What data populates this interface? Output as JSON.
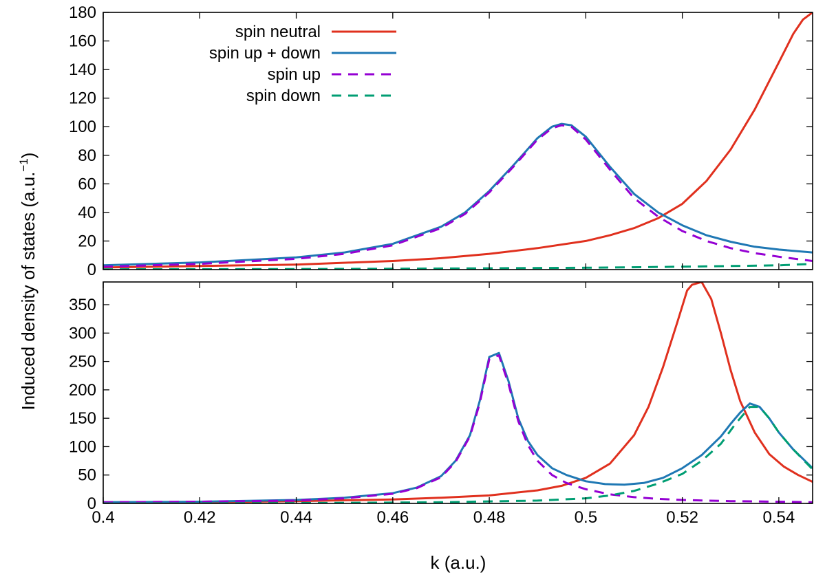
{
  "chart_data": {
    "type": "line",
    "xlabel": "k (a.u.)",
    "ylabel": "Induced density of states (a.u.",
    "ylabel_exp": "−1",
    "ylabel_close": ")",
    "xlim": [
      0.4,
      0.547
    ],
    "xticks": [
      "0.4",
      "0.42",
      "0.44",
      "0.46",
      "0.48",
      "0.5",
      "0.52",
      "0.54"
    ],
    "grid": false,
    "legend_position": "top-left",
    "legend": [
      {
        "label": "spin neutral",
        "color": "#e0301e",
        "dash": "solid"
      },
      {
        "label": "spin up + down",
        "color": "#1f78b4",
        "dash": "solid"
      },
      {
        "label": "spin up",
        "color": "#9400d3",
        "dash": "dashed"
      },
      {
        "label": "spin down",
        "color": "#009e73",
        "dash": "dashed"
      }
    ],
    "panels": [
      {
        "name": "top",
        "ylim": [
          0,
          180
        ],
        "yticks": [
          "0",
          "20",
          "40",
          "60",
          "80",
          "100",
          "120",
          "140",
          "160",
          "180"
        ],
        "series": [
          {
            "name": "spin neutral",
            "color": "#e0301e",
            "dash": "solid",
            "x": [
              0.4,
              0.42,
              0.44,
              0.46,
              0.47,
              0.48,
              0.49,
              0.5,
              0.505,
              0.51,
              0.515,
              0.52,
              0.525,
              0.53,
              0.535,
              0.54,
              0.543,
              0.545,
              0.547
            ],
            "y": [
              1.5,
              2.5,
              3.5,
              6,
              8,
              11,
              15,
              20,
              24,
              29,
              36,
              46,
              62,
              84,
              112,
              145,
              165,
              175,
              180
            ]
          },
          {
            "name": "spin up + down",
            "color": "#1f78b4",
            "dash": "solid",
            "x": [
              0.4,
              0.42,
              0.44,
              0.45,
              0.46,
              0.47,
              0.475,
              0.48,
              0.485,
              0.49,
              0.493,
              0.495,
              0.497,
              0.5,
              0.505,
              0.51,
              0.515,
              0.52,
              0.525,
              0.53,
              0.535,
              0.54,
              0.547
            ],
            "y": [
              3,
              5,
              8.5,
              12,
              18,
              30,
              40,
              55,
              73,
              92,
              100,
              102,
              101,
              93,
              72,
              53,
              40,
              31,
              24,
              19.5,
              16,
              14,
              12
            ]
          },
          {
            "name": "spin up",
            "color": "#9400d3",
            "dash": "dashed",
            "x": [
              0.4,
              0.42,
              0.44,
              0.45,
              0.46,
              0.47,
              0.475,
              0.48,
              0.485,
              0.49,
              0.493,
              0.495,
              0.497,
              0.5,
              0.505,
              0.51,
              0.515,
              0.52,
              0.525,
              0.53,
              0.535,
              0.54,
              0.547
            ],
            "y": [
              2,
              4,
              7.5,
              11,
              17,
              29,
              39,
              54,
              72,
              91,
              99,
              101,
              100,
              91,
              70,
              50,
              37,
              27,
              20,
              15,
              11.5,
              9,
              6
            ]
          },
          {
            "name": "spin down",
            "color": "#009e73",
            "dash": "dashed",
            "x": [
              0.4,
              0.42,
              0.44,
              0.46,
              0.48,
              0.5,
              0.52,
              0.54,
              0.547
            ],
            "y": [
              0.2,
              0.3,
              0.4,
              0.6,
              0.9,
              1.3,
              2,
              3,
              4
            ]
          }
        ]
      },
      {
        "name": "bottom",
        "ylim": [
          0,
          390
        ],
        "yticks": [
          "0",
          "50",
          "100",
          "150",
          "200",
          "250",
          "300",
          "350"
        ],
        "series": [
          {
            "name": "spin neutral",
            "color": "#e0301e",
            "dash": "solid",
            "x": [
              0.4,
              0.42,
              0.44,
              0.46,
              0.47,
              0.48,
              0.49,
              0.495,
              0.5,
              0.505,
              0.51,
              0.513,
              0.516,
              0.519,
              0.521,
              0.522,
              0.524,
              0.526,
              0.528,
              0.53,
              0.532,
              0.535,
              0.538,
              0.541,
              0.544,
              0.547
            ],
            "y": [
              1,
              2,
              4,
              7,
              10,
              14,
              23,
              31,
              45,
              70,
              120,
              170,
              240,
              320,
              375,
              385,
              390,
              360,
              300,
              235,
              180,
              125,
              87,
              65,
              50,
              38
            ]
          },
          {
            "name": "spin up + down",
            "color": "#1f78b4",
            "dash": "solid",
            "x": [
              0.4,
              0.42,
              0.44,
              0.45,
              0.46,
              0.465,
              0.47,
              0.473,
              0.476,
              0.478,
              0.48,
              0.482,
              0.484,
              0.486,
              0.488,
              0.49,
              0.493,
              0.496,
              0.5,
              0.504,
              0.508,
              0.512,
              0.516,
              0.52,
              0.524,
              0.528,
              0.53,
              0.532,
              0.534,
              0.536,
              0.538,
              0.54,
              0.543,
              0.547
            ],
            "y": [
              2,
              3,
              6,
              10,
              18,
              28,
              48,
              75,
              120,
              180,
              258,
              265,
              215,
              150,
              110,
              85,
              62,
              50,
              39,
              34,
              33,
              36,
              45,
              62,
              85,
              118,
              140,
              160,
              176,
              170,
              150,
              125,
              95,
              62
            ]
          },
          {
            "name": "spin up",
            "color": "#9400d3",
            "dash": "dashed",
            "x": [
              0.4,
              0.42,
              0.44,
              0.45,
              0.46,
              0.465,
              0.47,
              0.473,
              0.476,
              0.478,
              0.48,
              0.482,
              0.484,
              0.486,
              0.488,
              0.49,
              0.493,
              0.496,
              0.5,
              0.505,
              0.51,
              0.515,
              0.52,
              0.53,
              0.54,
              0.547
            ],
            "y": [
              2,
              3,
              5,
              9,
              17,
              27,
              46,
              73,
              118,
              176,
              254,
              261,
              210,
              145,
              103,
              75,
              50,
              36,
              25,
              16,
              11,
              8,
              6,
              4,
              3,
              2
            ]
          },
          {
            "name": "spin down",
            "color": "#009e73",
            "dash": "dashed",
            "x": [
              0.4,
              0.44,
              0.47,
              0.49,
              0.5,
              0.505,
              0.51,
              0.515,
              0.52,
              0.524,
              0.528,
              0.531,
              0.534,
              0.536,
              0.538,
              0.54,
              0.543,
              0.547
            ],
            "y": [
              0,
              0.5,
              2,
              5,
              9,
              14,
              22,
              35,
              52,
              75,
              105,
              140,
              170,
              170,
              150,
              125,
              95,
              60
            ]
          }
        ]
      }
    ]
  }
}
